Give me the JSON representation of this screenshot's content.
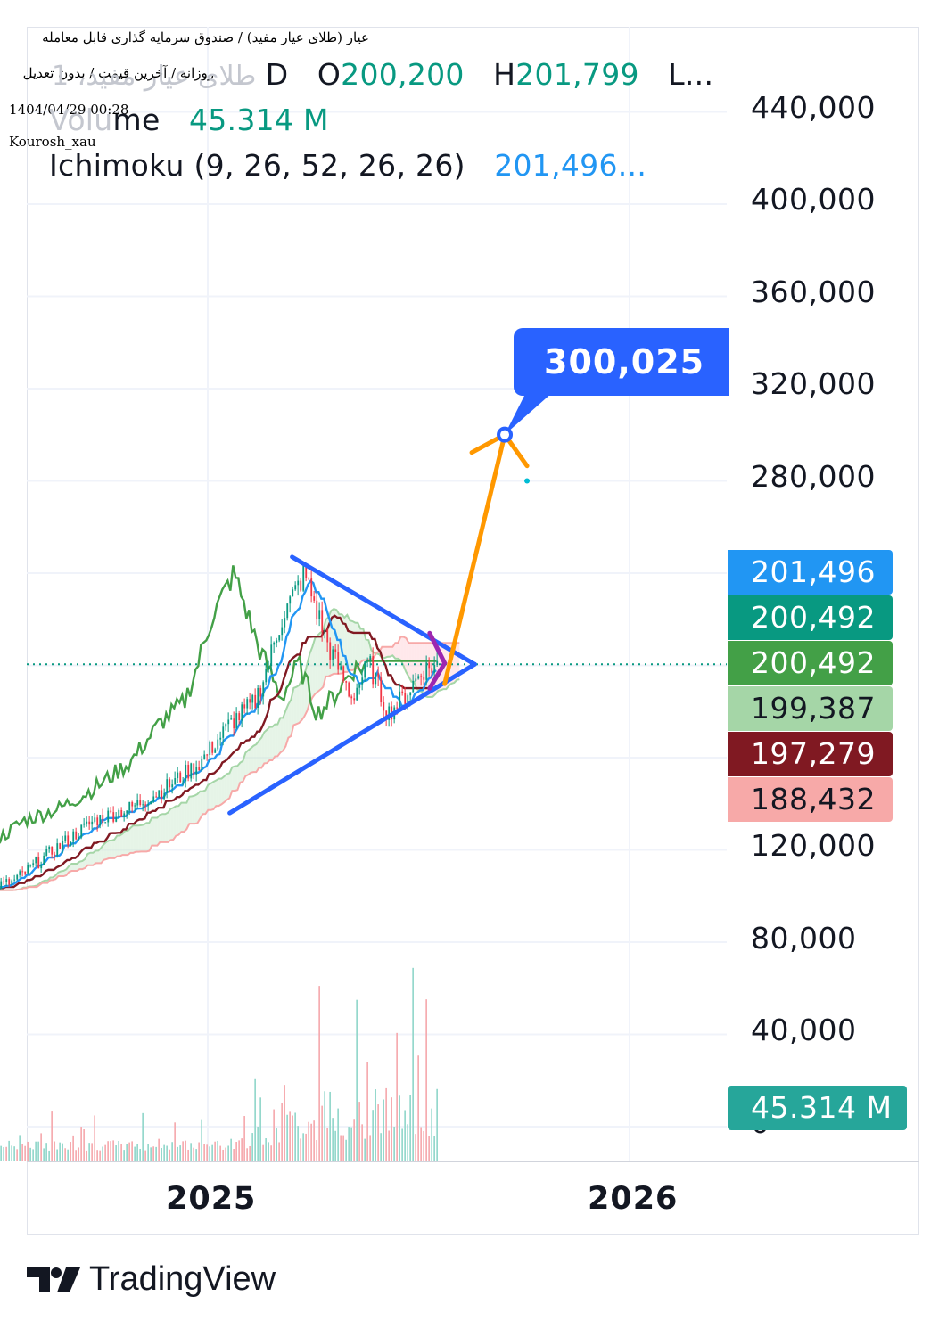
{
  "header": {
    "title_fa": "عیار (طلای عیار مفید) / صندوق سرمایه گذاری قابل معامله",
    "subtitle_fa": "روزانه / آخرین قیمت / بدون تعدیل",
    "timestamp": "1404/04/29 00:28",
    "author": "Kourosh_xau"
  },
  "legend": {
    "symbol_faded": "طلای عیار مفید، 1",
    "interval": "D",
    "open_label": "O",
    "open_value": "200,200",
    "high_label": "H",
    "high_value": "201,799",
    "low_label": "L...",
    "volume_label_faded": "Volu",
    "volume_label": "me",
    "volume_value": "45.314 M",
    "ichimoku_label": "Ichimoku (9, 26, 52, 26, 26)",
    "ichimoku_value": "201,496..."
  },
  "target_callout": {
    "label": "300,025",
    "value": 300025
  },
  "price_tags": [
    {
      "label": "201,496",
      "color": "#2196f3",
      "text_color": "#ffffff",
      "name": "conversion-line-tag"
    },
    {
      "label": "200,492",
      "color": "#089981",
      "text_color": "#ffffff",
      "name": "last-price-tag"
    },
    {
      "label": "200,492",
      "color": "#43a047",
      "text_color": "#ffffff",
      "name": "lagging-span-tag"
    },
    {
      "label": "199,387",
      "color": "#a5d6a7",
      "text_color": "#131722",
      "name": "leading-span-a-tag"
    },
    {
      "label": "197,279",
      "color": "#801922",
      "text_color": "#ffffff",
      "name": "base-line-tag"
    },
    {
      "label": "188,432",
      "color": "#f7a9a8",
      "text_color": "#131722",
      "name": "leading-span-b-tag"
    }
  ],
  "volume_tag": {
    "label": "45.314 M",
    "color": "#26a69a"
  },
  "brand": {
    "name": "TradingView"
  },
  "colors": {
    "triangle": "#2962ff",
    "projection": "#ff9800",
    "pennant": "#9c27b0",
    "candle_up": "#089981",
    "candle_down": "#f23645",
    "lagging": "#43a047",
    "conversion": "#2196f3",
    "base": "#801922",
    "cloud_bull": "#c8e6c9",
    "cloud_bear": "#ffcdd2"
  },
  "chart_data": {
    "type": "line",
    "x_ticks": [
      "2025",
      "2026"
    ],
    "y_ticks": [
      "440,000",
      "400,000",
      "360,000",
      "320,000",
      "280,000",
      "120,000",
      "80,000",
      "40,000",
      "0"
    ],
    "y_range": [
      0,
      440000
    ],
    "last_price": 200492,
    "target_price": 300025,
    "series": [
      {
        "name": "price",
        "x": [
          "2024-06-10",
          "2024-07-15",
          "2024-08-20",
          "2024-09-25",
          "2024-10-25",
          "2024-11-25",
          "2024-12-25",
          "2025-01-20",
          "2025-02-10",
          "2025-02-20",
          "2025-03-05",
          "2025-03-25",
          "2025-04-15",
          "2025-05-05",
          "2025-05-20",
          "2025-06-05",
          "2025-06-20",
          "2025-07-05",
          "2025-07-20"
        ],
        "values": [
          102000,
          106000,
          120000,
          133000,
          138000,
          147000,
          158000,
          175000,
          184000,
          198000,
          220000,
          240000,
          208000,
          186000,
          201000,
          179000,
          187000,
          198000,
          200492
        ]
      }
    ],
    "annotations": {
      "triangle_upper": {
        "from": [
          "2025-03-15",
          247000
        ],
        "to": [
          "2025-08-20",
          200492
        ]
      },
      "triangle_lower": {
        "from": [
          "2025-01-20",
          136000
        ],
        "to": [
          "2025-08-20",
          200492
        ]
      },
      "projection": {
        "from": [
          "2025-07-25",
          192000
        ],
        "to": [
          "2025-09-15",
          300025
        ]
      }
    }
  }
}
